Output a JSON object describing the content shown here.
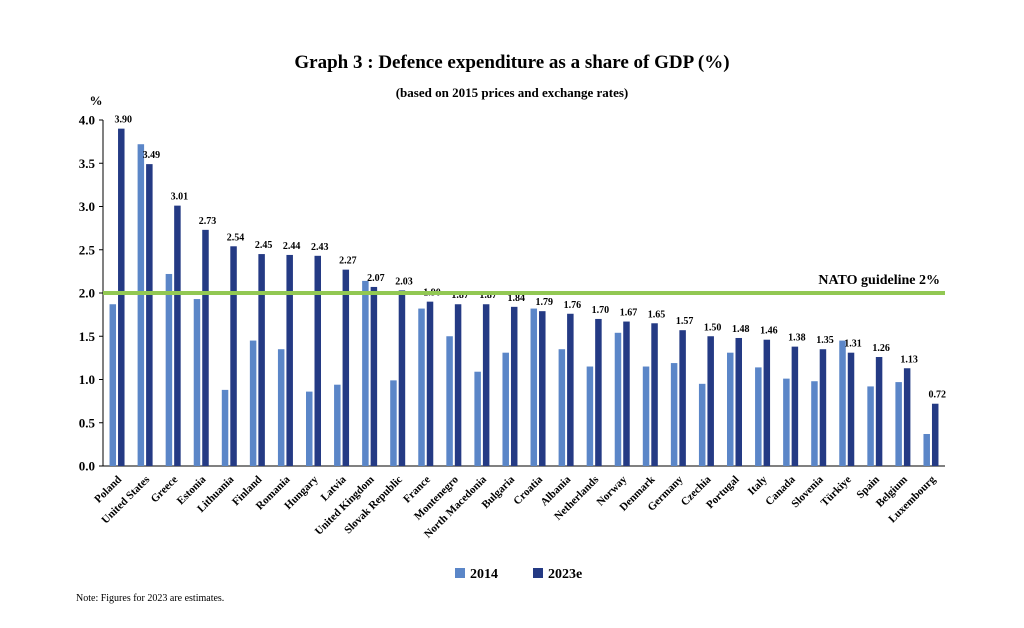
{
  "chart_data": {
    "type": "bar",
    "title": "Graph 3 : Defence expenditure as a share of GDP (%)",
    "subtitle": "(based on 2015 prices and exchange rates)",
    "ylabel": "%",
    "ylim": [
      0,
      4.0
    ],
    "yticks": [
      "0.0",
      "0.5",
      "1.0",
      "1.5",
      "2.0",
      "2.5",
      "3.0",
      "3.5",
      "4.0"
    ],
    "categories": [
      "Poland",
      "United States",
      "Greece",
      "Estonia",
      "Lithuania",
      "Finland",
      "Romania",
      "Hungary",
      "Latvia",
      "United Kingdom",
      "Slovak Republic",
      "France",
      "Montenegro",
      "North Macedonia",
      "Bulgaria",
      "Croatia",
      "Albania",
      "Netherlands",
      "Norway",
      "Denmark",
      "Germany",
      "Czechia",
      "Portugal",
      "Italy",
      "Canada",
      "Slovenia",
      "Türkiye",
      "Spain",
      "Belgium",
      "Luxembourg"
    ],
    "series": [
      {
        "name": "2014",
        "color": "#5b86c8",
        "values": [
          1.87,
          3.72,
          2.22,
          1.93,
          0.88,
          1.45,
          1.35,
          0.86,
          0.94,
          2.14,
          0.99,
          1.82,
          1.5,
          1.09,
          1.31,
          1.82,
          1.35,
          1.15,
          1.54,
          1.15,
          1.19,
          0.95,
          1.31,
          1.14,
          1.01,
          0.98,
          1.45,
          0.92,
          0.97,
          0.37
        ]
      },
      {
        "name": "2023e",
        "color": "#243a84",
        "values": [
          3.9,
          3.49,
          3.01,
          2.73,
          2.54,
          2.45,
          2.44,
          2.43,
          2.27,
          2.07,
          2.03,
          1.9,
          1.87,
          1.87,
          1.84,
          1.79,
          1.76,
          1.7,
          1.67,
          1.65,
          1.57,
          1.5,
          1.48,
          1.46,
          1.38,
          1.35,
          1.31,
          1.26,
          1.13,
          0.72
        ],
        "labels": [
          "3.90",
          "3.49",
          "3.01",
          "2.73",
          "2.54",
          "2.45",
          "2.44",
          "2.43",
          "2.27",
          "2.07",
          "2.03",
          "1.90",
          "1.87",
          "1.87",
          "1.84",
          "1.79",
          "1.76",
          "1.70",
          "1.67",
          "1.65",
          "1.57",
          "1.50",
          "1.48",
          "1.46",
          "1.38",
          "1.35",
          "1.31",
          "1.26",
          "1.13",
          "0.72"
        ]
      }
    ],
    "guideline": {
      "value": 2.0,
      "label": "NATO guideline 2%",
      "color": "#92c853"
    },
    "legend_position": "bottom-center",
    "grid": false,
    "note": "Note: Figures for 2023 are estimates."
  }
}
